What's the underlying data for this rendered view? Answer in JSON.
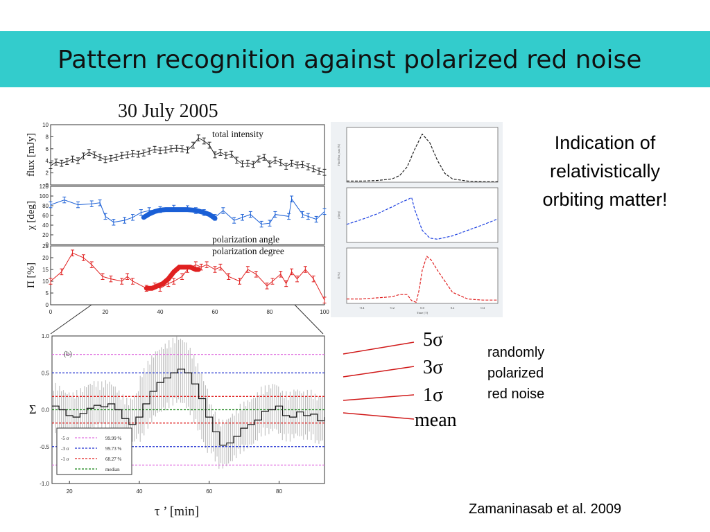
{
  "slide": {
    "title": "Pattern recognition against polarized red noise",
    "indication_text": "Indication of relativistically orbiting matter!",
    "noise_text": "randomly polarized red noise",
    "citation": "Zamaninasab et al. 2009",
    "sigma_labels": [
      "5σ",
      "3σ",
      "1σ",
      "mean"
    ]
  },
  "colors": {
    "title_bar": "#33cccc",
    "flux": "#222222",
    "chi": "#1a5fd6",
    "pi": "#e02020",
    "leader": "#d01818"
  },
  "chart_data": [
    {
      "type": "line",
      "title": "30 July 2005",
      "panels": [
        {
          "ylabel": "flux [mJy]",
          "annotation": "total intensity",
          "ylim": [
            0,
            10
          ],
          "yticks": [
            "0",
            "2",
            "4",
            "6",
            "8",
            "10"
          ],
          "x": [
            0,
            2,
            4,
            6,
            8,
            10,
            12,
            14,
            16,
            18,
            20,
            22,
            24,
            26,
            28,
            30,
            32,
            34,
            36,
            38,
            40,
            42,
            44,
            46,
            48,
            50,
            52,
            54,
            56,
            58,
            60,
            62,
            64,
            66,
            68,
            70,
            72,
            74,
            76,
            78,
            80,
            82,
            84,
            86,
            88,
            90,
            92,
            94,
            96,
            98,
            100
          ],
          "values": [
            3.2,
            3.8,
            3.6,
            3.9,
            4.3,
            4.0,
            4.8,
            5.4,
            5.0,
            4.6,
            4.2,
            4.4,
            4.6,
            4.9,
            5.0,
            5.2,
            5.1,
            5.3,
            5.6,
            5.9,
            5.7,
            5.8,
            6.0,
            6.1,
            6.0,
            5.8,
            6.6,
            7.8,
            7.3,
            6.6,
            5.0,
            5.4,
            4.9,
            5.1,
            4.1,
            3.5,
            3.6,
            3.4,
            4.3,
            4.6,
            3.5,
            4.1,
            3.7,
            3.1,
            3.6,
            3.3,
            3.4,
            3.0,
            2.7,
            2.3,
            2.1
          ]
        },
        {
          "ylabel": "χ [deg]",
          "annotation": "polarization angle",
          "ylim": [
            0,
            120
          ],
          "yticks": [
            "0",
            "20",
            "40",
            "60",
            "80",
            "100",
            "120"
          ],
          "x": [
            0,
            5,
            10,
            15,
            18,
            20,
            23,
            27,
            30,
            33,
            36,
            40,
            45,
            50,
            53,
            56,
            60,
            63,
            67,
            70,
            73,
            77,
            80,
            82,
            87,
            88,
            92,
            94,
            97,
            100
          ],
          "values": [
            82,
            92,
            82,
            84,
            86,
            58,
            46,
            50,
            56,
            66,
            70,
            72,
            75,
            74,
            70,
            66,
            56,
            70,
            50,
            56,
            62,
            42,
            44,
            62,
            58,
            94,
            62,
            58,
            52,
            68
          ],
          "highlight_x": [
            34,
            36,
            38,
            40,
            42,
            44,
            46,
            48,
            50,
            52,
            54,
            56,
            58,
            60
          ],
          "highlight_values": [
            56,
            63,
            68,
            71,
            72,
            72,
            72,
            72,
            72,
            71,
            69,
            66,
            62,
            54
          ]
        },
        {
          "ylabel": "Π [%]",
          "annotation": "polarization degree",
          "ylim": [
            0,
            25
          ],
          "yticks": [
            "0",
            "5",
            "10",
            "15",
            "20",
            "25"
          ],
          "x": [
            0,
            4,
            8,
            12,
            15,
            19,
            22,
            26,
            28,
            30,
            35,
            38,
            40,
            43,
            45,
            48,
            50,
            53,
            55,
            57,
            60,
            62,
            65,
            69,
            72,
            75,
            79,
            81,
            84,
            86,
            88,
            90,
            93,
            96,
            100
          ],
          "values": [
            10,
            14,
            22,
            20,
            17,
            12,
            11,
            10,
            12,
            10,
            7,
            8,
            7,
            9,
            10,
            12,
            15,
            17,
            16,
            17,
            15,
            16,
            12,
            10,
            15,
            13,
            8,
            10,
            13,
            9,
            14,
            11,
            15,
            11,
            2
          ],
          "highlight_x": [
            35,
            37,
            39,
            41,
            43,
            45,
            47,
            49,
            51,
            53,
            54
          ],
          "highlight_values": [
            7,
            7,
            8,
            9,
            11,
            14,
            16,
            16,
            16,
            15,
            15
          ]
        }
      ],
      "xlim": [
        0,
        100
      ],
      "xticks": [
        "0",
        "20",
        "40",
        "60",
        "80",
        "100"
      ]
    },
    {
      "type": "line",
      "panel_label": "(b)",
      "xlabel": "τ ’ [min]",
      "ylabel": "Σ",
      "xlim": [
        15,
        93
      ],
      "ylim": [
        -1,
        1
      ],
      "xticks": [
        "20",
        "40",
        "60",
        "80"
      ],
      "yticks": [
        "1.0",
        "0.5",
        "0.0",
        "-0.5",
        "-1.0"
      ],
      "legend": [
        {
          "label": "-5 σ",
          "value": "99.99 %",
          "color": "#e070e0"
        },
        {
          "label": "-3 σ",
          "value": "99.73 %",
          "color": "#2030d0"
        },
        {
          "label": "-1 σ",
          "value": "68.27 %",
          "color": "#e02020"
        },
        {
          "label": "",
          "value": "median",
          "color": "#108010"
        }
      ],
      "x": [
        15,
        17,
        19,
        21,
        23,
        25,
        27,
        29,
        31,
        33,
        35,
        37,
        39,
        41,
        43,
        45,
        47,
        49,
        51,
        53,
        55,
        57,
        59,
        61,
        63,
        65,
        67,
        69,
        71,
        73,
        75,
        77,
        79,
        81,
        83,
        85,
        87,
        89,
        91,
        93
      ],
      "values": [
        0.05,
        0.0,
        -0.08,
        -0.1,
        -0.05,
        0.02,
        0.06,
        0.04,
        0.08,
        0.0,
        -0.12,
        -0.2,
        -0.1,
        0.08,
        0.25,
        0.37,
        0.43,
        0.5,
        0.55,
        0.5,
        0.35,
        0.15,
        -0.1,
        -0.3,
        -0.48,
        -0.45,
        -0.36,
        -0.25,
        -0.2,
        -0.14,
        -0.02,
        0.0,
        0.05,
        -0.08,
        -0.1,
        -0.03,
        -0.08,
        -0.06,
        -0.15,
        -0.1
      ],
      "sigma_levels": {
        "5σ": [
          -0.75,
          0.75
        ],
        "3σ": [
          -0.5,
          0.5
        ],
        "1σ": [
          -0.18,
          0.18
        ],
        "mean": 0.0
      }
    },
    {
      "type": "line",
      "panels": [
        {
          "ylabel": "Flux/Flux_max [%]",
          "ylim": [
            0,
            1
          ],
          "x": [
            -0.5,
            -0.4,
            -0.3,
            -0.2,
            -0.15,
            -0.1,
            -0.05,
            0.0,
            0.05,
            0.1,
            0.15,
            0.2,
            0.3,
            0.4,
            0.5
          ],
          "values": [
            0.02,
            0.02,
            0.03,
            0.06,
            0.12,
            0.28,
            0.6,
            0.88,
            0.72,
            0.4,
            0.16,
            0.06,
            0.02,
            0.01,
            0.01
          ]
        },
        {
          "ylabel": "χ [deg]",
          "ylim": [
            0,
            1
          ],
          "x": [
            -0.5,
            -0.4,
            -0.3,
            -0.2,
            -0.15,
            -0.1,
            -0.07,
            -0.05,
            0.0,
            0.05,
            0.1,
            0.2,
            0.3,
            0.4,
            0.5
          ],
          "values": [
            0.33,
            0.42,
            0.52,
            0.65,
            0.72,
            0.78,
            0.82,
            0.6,
            0.22,
            0.08,
            0.06,
            0.12,
            0.22,
            0.32,
            0.43
          ]
        },
        {
          "ylabel": "Π [%]",
          "ylim": [
            0,
            1
          ],
          "x": [
            -0.5,
            -0.4,
            -0.3,
            -0.2,
            -0.15,
            -0.1,
            -0.07,
            -0.04,
            -0.02,
            0.0,
            0.03,
            0.06,
            0.1,
            0.15,
            0.2,
            0.3,
            0.4,
            0.5
          ],
          "values": [
            0.08,
            0.08,
            0.1,
            0.12,
            0.16,
            0.16,
            0.05,
            0.02,
            0.25,
            0.6,
            0.85,
            0.78,
            0.6,
            0.4,
            0.2,
            0.08,
            0.06,
            0.06
          ]
        }
      ],
      "xlabel": "Time [T]",
      "xlim": [
        -0.5,
        0.5
      ],
      "xticks": [
        "-0.4",
        "-0.2",
        "0.0",
        "0.2",
        "0.4"
      ]
    }
  ]
}
